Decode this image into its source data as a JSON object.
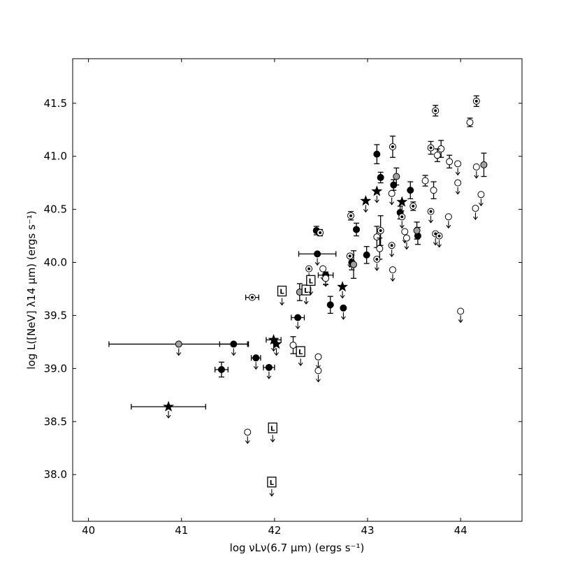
{
  "chart_data": {
    "type": "scatter",
    "title": "",
    "xlabel": "log νLν(6.7 μm)  (ergs s⁻¹)",
    "ylabel": "log L([NeV] λ14 μm) (ergs s⁻¹)",
    "xlim": [
      39.83,
      44.66
    ],
    "ylim": [
      37.56,
      41.92
    ],
    "xticks": [
      40,
      41,
      42,
      43,
      44
    ],
    "yticks": [
      38.0,
      38.5,
      39.0,
      39.5,
      40.0,
      40.5,
      41.0,
      41.5
    ],
    "xtick_labels": [
      "40",
      "41",
      "42",
      "43",
      "44"
    ],
    "ytick_labels": [
      "38.0",
      "38.5",
      "39.0",
      "39.5",
      "40.0",
      "40.5",
      "41.0",
      "41.5"
    ],
    "grid": false,
    "legend": false,
    "series": [
      {
        "marker": "filled-circle",
        "points": [
          {
            "x": 43.1,
            "y": 41.02,
            "yerr": 0.09
          },
          {
            "x": 43.14,
            "y": 40.8,
            "yerr": 0.05
          },
          {
            "x": 43.28,
            "y": 40.73,
            "yerr": 0.05
          },
          {
            "x": 43.46,
            "y": 40.68,
            "yerr": 0.08
          },
          {
            "x": 43.35,
            "y": 40.47,
            "yerr": 0.06
          },
          {
            "x": 43.54,
            "y": 40.25,
            "yerr": 0.08
          },
          {
            "x": 42.88,
            "y": 40.31,
            "yerr": 0.06
          },
          {
            "x": 42.99,
            "y": 40.07,
            "yerr": 0.08
          },
          {
            "x": 42.45,
            "y": 40.3,
            "yerr": 0.04
          },
          {
            "x": 42.46,
            "y": 40.08,
            "xerr": 0.2,
            "upper": true
          },
          {
            "x": 42.55,
            "y": 39.88,
            "xerr": 0.08,
            "upper": true
          },
          {
            "x": 42.83,
            "y": 40.0,
            "yerr": 0.07
          },
          {
            "x": 42.6,
            "y": 39.6,
            "yerr": 0.08
          },
          {
            "x": 42.74,
            "y": 39.57,
            "upper": true
          },
          {
            "x": 42.25,
            "y": 39.48,
            "xerr": 0.07,
            "upper": true
          },
          {
            "x": 41.56,
            "y": 39.23,
            "xerr": 0.15,
            "upper": true
          },
          {
            "x": 41.8,
            "y": 39.1,
            "xerr": 0.05,
            "upper": true
          },
          {
            "x": 41.94,
            "y": 39.01,
            "xerr": 0.06,
            "upper": true
          },
          {
            "x": 41.43,
            "y": 38.99,
            "yerr": 0.07,
            "xerr": 0.07
          }
        ]
      },
      {
        "marker": "open-circle",
        "points": [
          {
            "x": 43.79,
            "y": 41.07,
            "yerr": 0.08
          },
          {
            "x": 43.75,
            "y": 41.01,
            "yerr": 0.06
          },
          {
            "x": 43.88,
            "y": 40.95,
            "yerr": 0.06
          },
          {
            "x": 43.97,
            "y": 40.93,
            "upper": true
          },
          {
            "x": 44.17,
            "y": 40.9,
            "upper": true
          },
          {
            "x": 43.97,
            "y": 40.75,
            "upper": true
          },
          {
            "x": 43.62,
            "y": 40.77,
            "yerr": 0.05
          },
          {
            "x": 43.71,
            "y": 40.68,
            "yerr": 0.08
          },
          {
            "x": 44.22,
            "y": 40.64,
            "upper": true
          },
          {
            "x": 44.16,
            "y": 40.51,
            "upper": true
          },
          {
            "x": 44.1,
            "y": 41.32,
            "yerr": 0.04
          },
          {
            "x": 43.87,
            "y": 40.43,
            "upper": true
          },
          {
            "x": 43.26,
            "y": 40.65,
            "upper": true
          },
          {
            "x": 43.4,
            "y": 40.29,
            "upper": true
          },
          {
            "x": 43.42,
            "y": 40.23,
            "upper": true
          },
          {
            "x": 43.1,
            "y": 40.24,
            "yerr": 0.1
          },
          {
            "x": 43.13,
            "y": 40.13,
            "yerr": 0.1
          },
          {
            "x": 43.27,
            "y": 39.93,
            "upper": true
          },
          {
            "x": 42.52,
            "y": 39.94,
            "upper": true
          },
          {
            "x": 42.55,
            "y": 39.85,
            "yerr": 0.06
          },
          {
            "x": 42.2,
            "y": 39.22,
            "yerr": 0.08
          },
          {
            "x": 42.47,
            "y": 39.11,
            "upper": true
          },
          {
            "x": 42.47,
            "y": 38.98,
            "upper": true
          },
          {
            "x": 44.0,
            "y": 39.54,
            "upper": true
          },
          {
            "x": 41.71,
            "y": 38.4,
            "upper": true
          }
        ]
      },
      {
        "marker": "dot-circle",
        "points": [
          {
            "x": 43.73,
            "y": 41.43,
            "yerr": 0.05
          },
          {
            "x": 44.17,
            "y": 41.52,
            "yerr": 0.05
          },
          {
            "x": 43.27,
            "y": 41.09,
            "yerr": 0.1
          },
          {
            "x": 43.68,
            "y": 41.08,
            "yerr": 0.06
          },
          {
            "x": 43.14,
            "y": 40.3,
            "yerr": 0.14
          },
          {
            "x": 43.37,
            "y": 40.43,
            "upper": true
          },
          {
            "x": 43.49,
            "y": 40.53,
            "yerr": 0.04
          },
          {
            "x": 43.68,
            "y": 40.48,
            "upper": true
          },
          {
            "x": 43.73,
            "y": 40.27,
            "upper": true
          },
          {
            "x": 43.77,
            "y": 40.25,
            "upper": true
          },
          {
            "x": 43.26,
            "y": 40.16,
            "upper": true
          },
          {
            "x": 43.1,
            "y": 40.03,
            "upper": true
          },
          {
            "x": 42.82,
            "y": 40.44,
            "yerr": 0.04
          },
          {
            "x": 42.49,
            "y": 40.28,
            "yerr": 0.03
          },
          {
            "x": 42.81,
            "y": 40.06,
            "upper": true
          },
          {
            "x": 42.37,
            "y": 39.94,
            "upper": true
          },
          {
            "x": 41.76,
            "y": 39.67,
            "xerr": 0.07
          }
        ]
      },
      {
        "marker": "gray-circle",
        "points": [
          {
            "x": 43.31,
            "y": 40.81,
            "yerr": 0.08
          },
          {
            "x": 44.25,
            "y": 40.92,
            "yerr": 0.11
          },
          {
            "x": 43.53,
            "y": 40.3,
            "yerr": 0.08
          },
          {
            "x": 42.85,
            "y": 39.98,
            "yerr": 0.13
          },
          {
            "x": 42.27,
            "y": 39.72,
            "yerr": 0.08
          },
          {
            "x": 40.97,
            "y": 39.23,
            "xerr": 0.75,
            "upper": true
          }
        ]
      },
      {
        "marker": "star",
        "points": [
          {
            "x": 43.1,
            "y": 40.67,
            "upper": true
          },
          {
            "x": 42.98,
            "y": 40.58,
            "upper": true
          },
          {
            "x": 43.37,
            "y": 40.57,
            "upper": true
          },
          {
            "x": 42.73,
            "y": 39.77,
            "upper": true
          },
          {
            "x": 41.99,
            "y": 39.27,
            "xerr": 0.08,
            "upper": true
          },
          {
            "x": 42.02,
            "y": 39.23,
            "upper": true
          },
          {
            "x": 40.86,
            "y": 38.64,
            "xerr": 0.4,
            "upper": true
          }
        ]
      },
      {
        "marker": "L-box",
        "points": [
          {
            "x": 42.08,
            "y": 39.73,
            "upper": true
          },
          {
            "x": 42.34,
            "y": 39.74,
            "upper": true
          },
          {
            "x": 42.39,
            "y": 39.83,
            "upper": true
          },
          {
            "x": 42.28,
            "y": 39.16,
            "upper": true
          },
          {
            "x": 41.98,
            "y": 38.44,
            "upper": true
          },
          {
            "x": 41.97,
            "y": 37.93,
            "upper": true
          }
        ]
      }
    ]
  }
}
